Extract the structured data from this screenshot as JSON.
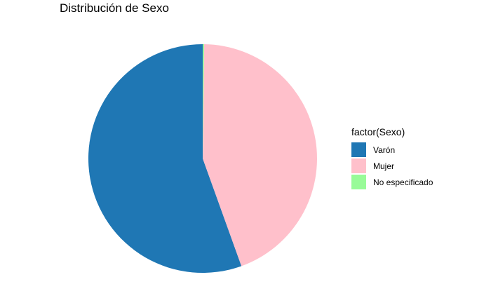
{
  "chart_data": {
    "type": "pie",
    "title": "Distribución de Sexo",
    "legend": {
      "title": "factor(Sexo)",
      "placement": "right"
    },
    "categories": [
      "Varón",
      "Mujer",
      "No especificado"
    ],
    "values": [
      55.5,
      44.3,
      0.2
    ],
    "colors": [
      "#1F77B4",
      "#FFC0CB",
      "#98FB98"
    ],
    "start": "top",
    "direction": "counterclockwise"
  }
}
